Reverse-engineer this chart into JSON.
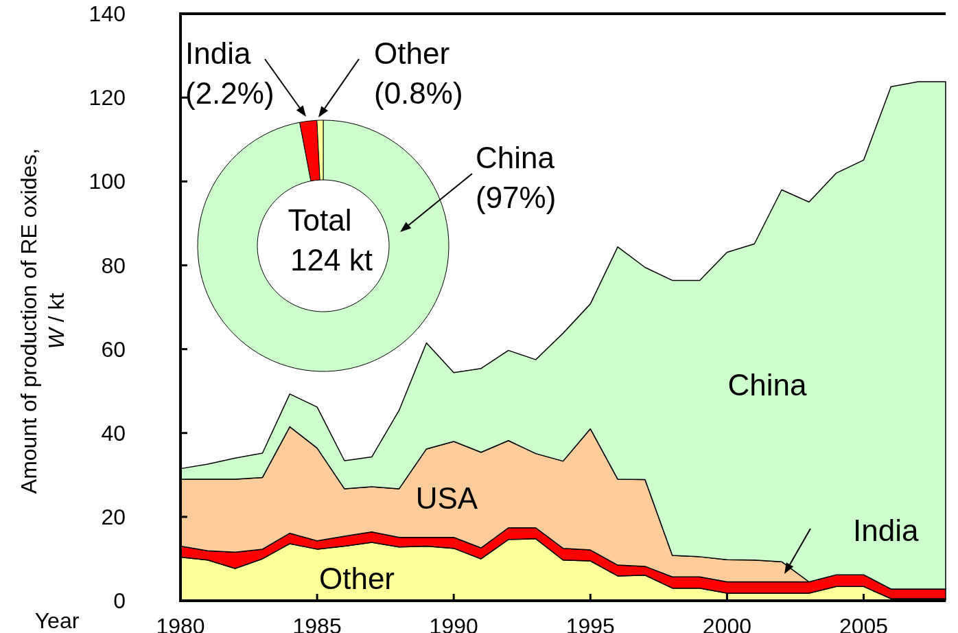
{
  "chart_data": [
    {
      "type": "area",
      "stacked": true,
      "xlabel": "Year",
      "ylabel": "Amount of production of RE oxides, W / kt",
      "x": [
        1980,
        1981,
        1982,
        1983,
        1984,
        1985,
        1986,
        1987,
        1988,
        1989,
        1990,
        1991,
        1992,
        1993,
        1994,
        1995,
        1996,
        1997,
        1998,
        1999,
        2000,
        2001,
        2002,
        2003,
        2004,
        2005,
        2006,
        2007,
        2008
      ],
      "xlim": [
        1980,
        2008
      ],
      "xticks": [
        1980,
        1985,
        1990,
        1995,
        2000,
        2005
      ],
      "ylim": [
        0,
        140
      ],
      "yticks": [
        0,
        20,
        40,
        60,
        80,
        100,
        120,
        140
      ],
      "series": [
        {
          "name": "Other",
          "color": "#ffff99",
          "values": [
            10.4,
            9.7,
            7.7,
            10.0,
            13.6,
            12.3,
            13.0,
            13.9,
            12.8,
            13.0,
            12.5,
            10.0,
            14.6,
            14.8,
            9.7,
            9.5,
            5.9,
            6.1,
            3.0,
            3.0,
            1.8,
            1.8,
            1.8,
            1.8,
            3.4,
            3.4,
            0.5,
            0.5,
            0.5
          ]
        },
        {
          "name": "India",
          "color": "#ff0000",
          "values": [
            2.6,
            2.2,
            3.9,
            2.3,
            2.5,
            2.0,
            2.4,
            2.5,
            2.3,
            2.1,
            2.6,
            2.6,
            2.8,
            2.6,
            2.8,
            2.6,
            2.6,
            2.1,
            2.7,
            2.7,
            2.7,
            2.7,
            2.7,
            2.7,
            2.8,
            2.8,
            2.3,
            2.3,
            2.3
          ]
        },
        {
          "name": "USA",
          "color": "#fccc9a",
          "values": [
            16.0,
            17.1,
            17.4,
            17.1,
            25.4,
            22.1,
            11.3,
            10.8,
            11.6,
            21.1,
            22.9,
            22.8,
            20.8,
            17.7,
            20.8,
            28.9,
            20.5,
            20.7,
            5.1,
            4.8,
            5.3,
            5.2,
            4.8,
            0,
            0,
            0,
            0,
            0,
            0
          ]
        },
        {
          "name": "China",
          "color": "#ccffcc",
          "values": [
            2.5,
            3.6,
            5.0,
            5.8,
            7.8,
            9.8,
            6.7,
            7.1,
            18.7,
            25.3,
            16.4,
            20.0,
            21.5,
            22.4,
            30.5,
            29.8,
            55.4,
            50.6,
            65.6,
            65.9,
            73.3,
            75.4,
            88.7,
            90.6,
            95.8,
            98.9,
            119.8,
            121.0,
            121.0
          ]
        }
      ]
    },
    {
      "type": "donut",
      "categories": [
        "China",
        "India",
        "Other"
      ],
      "values": [
        97,
        2.2,
        0.8
      ],
      "colors": [
        "#ccffcc",
        "#ff0000",
        "#ffff99"
      ],
      "value_labels": [
        "(97%)",
        "(2.2%)",
        "(0.8%)"
      ],
      "annotations": [
        "Total\n124 kt"
      ]
    }
  ]
}
